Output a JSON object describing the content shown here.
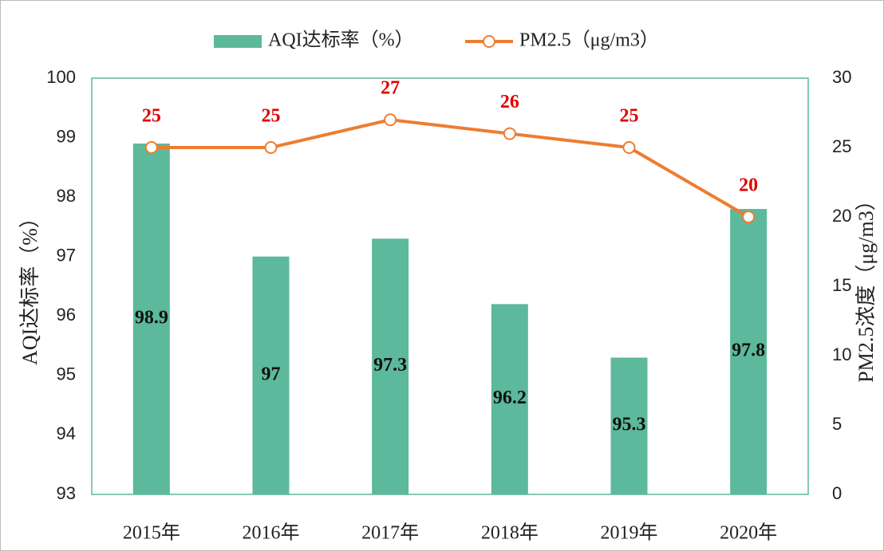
{
  "chart_data": {
    "type": "bar+line",
    "categories": [
      "2015年",
      "2016年",
      "2017年",
      "2018年",
      "2019年",
      "2020年"
    ],
    "ylabel": "AQI达标率（%）",
    "y2label": "PM2.5浓度（μg/m3）",
    "series": [
      {
        "name": "AQI达标率（%）",
        "type": "bar",
        "color": "#5cb99b",
        "values": [
          98.9,
          97,
          97.3,
          96.2,
          95.3,
          97.8
        ]
      },
      {
        "name": "PM2.5（μg/m3）",
        "type": "line",
        "axis": "y2",
        "color": "#ed7d31",
        "values": [
          25,
          25,
          27,
          26,
          25,
          20
        ]
      }
    ],
    "ylim": [
      93,
      100
    ],
    "yticks": [
      93,
      94,
      95,
      96,
      97,
      98,
      99,
      100
    ],
    "y2lim": [
      0,
      30
    ],
    "y2ticks": [
      0,
      5,
      10,
      15,
      20,
      25,
      30
    ],
    "legend": "top",
    "grid": false
  }
}
